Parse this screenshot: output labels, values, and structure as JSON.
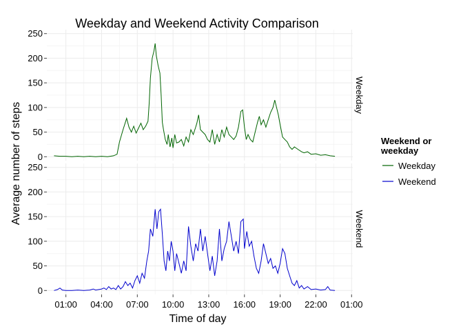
{
  "chart_data": {
    "type": "line",
    "title": "Weekday and Weekend Activity Comparison",
    "xlabel": "Time of day",
    "ylabel": "Average number of steps",
    "x_unit": "hours",
    "xlim": [
      -0.6,
      25.1
    ],
    "ylim": [
      -8,
      258
    ],
    "x_ticks": [
      {
        "value": 1,
        "label": "01:00"
      },
      {
        "value": 4,
        "label": "04:00"
      },
      {
        "value": 7,
        "label": "07:00"
      },
      {
        "value": 10,
        "label": "10:00"
      },
      {
        "value": 13,
        "label": "13:00"
      },
      {
        "value": 16,
        "label": "16:00"
      },
      {
        "value": 19,
        "label": "19:00"
      },
      {
        "value": 22,
        "label": "22:00"
      },
      {
        "value": 25,
        "label": "01:00"
      }
    ],
    "y_ticks": [
      0,
      50,
      100,
      150,
      200,
      250
    ],
    "legend": {
      "title_line1": "Weekend or",
      "title_line2": "weekday",
      "placement": "right"
    },
    "grid": true,
    "series": [
      {
        "name": "Weekday",
        "panel_label": "Weekday",
        "color": "#006400",
        "points": [
          [
            0,
            2
          ],
          [
            0.5,
            1
          ],
          [
            1,
            1
          ],
          [
            1.5,
            0
          ],
          [
            2,
            1
          ],
          [
            2.5,
            0
          ],
          [
            3,
            1
          ],
          [
            3.5,
            0
          ],
          [
            4,
            1
          ],
          [
            4.5,
            0
          ],
          [
            5,
            2
          ],
          [
            5.3,
            5
          ],
          [
            5.5,
            30
          ],
          [
            5.8,
            55
          ],
          [
            6.0,
            70
          ],
          [
            6.1,
            78
          ],
          [
            6.3,
            60
          ],
          [
            6.5,
            50
          ],
          [
            6.7,
            62
          ],
          [
            6.9,
            48
          ],
          [
            7.1,
            58
          ],
          [
            7.3,
            68
          ],
          [
            7.5,
            55
          ],
          [
            7.7,
            62
          ],
          [
            7.9,
            72
          ],
          [
            8.0,
            110
          ],
          [
            8.1,
            160
          ],
          [
            8.25,
            200
          ],
          [
            8.4,
            215
          ],
          [
            8.5,
            230
          ],
          [
            8.6,
            205
          ],
          [
            8.75,
            185
          ],
          [
            8.9,
            170
          ],
          [
            9.0,
            125
          ],
          [
            9.1,
            70
          ],
          [
            9.2,
            55
          ],
          [
            9.35,
            35
          ],
          [
            9.5,
            25
          ],
          [
            9.6,
            45
          ],
          [
            9.75,
            20
          ],
          [
            9.9,
            38
          ],
          [
            10.0,
            18
          ],
          [
            10.15,
            45
          ],
          [
            10.3,
            28
          ],
          [
            10.5,
            30
          ],
          [
            10.7,
            35
          ],
          [
            10.9,
            22
          ],
          [
            11.1,
            40
          ],
          [
            11.3,
            30
          ],
          [
            11.5,
            55
          ],
          [
            11.7,
            45
          ],
          [
            11.9,
            60
          ],
          [
            12.0,
            68
          ],
          [
            12.15,
            85
          ],
          [
            12.3,
            55
          ],
          [
            12.5,
            50
          ],
          [
            12.7,
            45
          ],
          [
            12.9,
            35
          ],
          [
            13.1,
            30
          ],
          [
            13.3,
            55
          ],
          [
            13.5,
            25
          ],
          [
            13.7,
            45
          ],
          [
            13.9,
            30
          ],
          [
            14.1,
            55
          ],
          [
            14.3,
            40
          ],
          [
            14.5,
            60
          ],
          [
            14.7,
            45
          ],
          [
            14.9,
            40
          ],
          [
            15.1,
            35
          ],
          [
            15.3,
            42
          ],
          [
            15.5,
            60
          ],
          [
            15.7,
            92
          ],
          [
            15.85,
            95
          ],
          [
            16.0,
            60
          ],
          [
            16.15,
            35
          ],
          [
            16.3,
            45
          ],
          [
            16.5,
            35
          ],
          [
            16.7,
            30
          ],
          [
            16.9,
            50
          ],
          [
            17.1,
            70
          ],
          [
            17.25,
            82
          ],
          [
            17.4,
            65
          ],
          [
            17.6,
            75
          ],
          [
            17.8,
            60
          ],
          [
            18.0,
            75
          ],
          [
            18.2,
            90
          ],
          [
            18.4,
            100
          ],
          [
            18.55,
            115
          ],
          [
            18.7,
            100
          ],
          [
            18.85,
            85
          ],
          [
            19.0,
            65
          ],
          [
            19.2,
            40
          ],
          [
            19.4,
            35
          ],
          [
            19.6,
            30
          ],
          [
            19.8,
            20
          ],
          [
            20.0,
            15
          ],
          [
            20.2,
            20
          ],
          [
            20.5,
            15
          ],
          [
            20.8,
            10
          ],
          [
            21.0,
            8
          ],
          [
            21.3,
            10
          ],
          [
            21.6,
            5
          ],
          [
            22.0,
            6
          ],
          [
            22.4,
            3
          ],
          [
            22.8,
            4
          ],
          [
            23.2,
            2
          ],
          [
            23.6,
            1
          ]
        ]
      },
      {
        "name": "Weekend",
        "panel_label": "Weekend",
        "color": "#0000cd",
        "points": [
          [
            0,
            0
          ],
          [
            0.3,
            2
          ],
          [
            0.5,
            5
          ],
          [
            0.7,
            1
          ],
          [
            1,
            0
          ],
          [
            1.5,
            0
          ],
          [
            2,
            1
          ],
          [
            2.5,
            0
          ],
          [
            3,
            1
          ],
          [
            3.3,
            3
          ],
          [
            3.5,
            1
          ],
          [
            4,
            3
          ],
          [
            4.2,
            5
          ],
          [
            4.4,
            2
          ],
          [
            4.6,
            8
          ],
          [
            4.8,
            3
          ],
          [
            5.0,
            5
          ],
          [
            5.2,
            2
          ],
          [
            5.4,
            10
          ],
          [
            5.6,
            3
          ],
          [
            5.8,
            8
          ],
          [
            6.0,
            18
          ],
          [
            6.2,
            10
          ],
          [
            6.4,
            15
          ],
          [
            6.6,
            5
          ],
          [
            6.8,
            20
          ],
          [
            7.0,
            30
          ],
          [
            7.2,
            15
          ],
          [
            7.4,
            35
          ],
          [
            7.6,
            25
          ],
          [
            7.8,
            60
          ],
          [
            7.95,
            80
          ],
          [
            8.1,
            125
          ],
          [
            8.3,
            110
          ],
          [
            8.5,
            165
          ],
          [
            8.65,
            125
          ],
          [
            8.8,
            160
          ],
          [
            8.95,
            165
          ],
          [
            9.1,
            115
          ],
          [
            9.25,
            60
          ],
          [
            9.4,
            40
          ],
          [
            9.55,
            80
          ],
          [
            9.7,
            60
          ],
          [
            9.85,
            100
          ],
          [
            10.0,
            80
          ],
          [
            10.15,
            40
          ],
          [
            10.3,
            75
          ],
          [
            10.5,
            55
          ],
          [
            10.7,
            35
          ],
          [
            10.9,
            60
          ],
          [
            11.1,
            40
          ],
          [
            11.3,
            130
          ],
          [
            11.5,
            90
          ],
          [
            11.7,
            60
          ],
          [
            11.9,
            95
          ],
          [
            12.1,
            80
          ],
          [
            12.3,
            125
          ],
          [
            12.5,
            80
          ],
          [
            12.7,
            110
          ],
          [
            12.9,
            75
          ],
          [
            13.1,
            40
          ],
          [
            13.3,
            70
          ],
          [
            13.5,
            30
          ],
          [
            13.7,
            60
          ],
          [
            13.9,
            125
          ],
          [
            14.1,
            60
          ],
          [
            14.3,
            85
          ],
          [
            14.5,
            100
          ],
          [
            14.7,
            140
          ],
          [
            14.9,
            110
          ],
          [
            15.1,
            80
          ],
          [
            15.3,
            100
          ],
          [
            15.5,
            75
          ],
          [
            15.7,
            140
          ],
          [
            15.9,
            145
          ],
          [
            16.0,
            85
          ],
          [
            16.2,
            120
          ],
          [
            16.4,
            90
          ],
          [
            16.6,
            100
          ],
          [
            16.8,
            70
          ],
          [
            17.0,
            45
          ],
          [
            17.2,
            35
          ],
          [
            17.4,
            60
          ],
          [
            17.6,
            95
          ],
          [
            17.8,
            75
          ],
          [
            18.0,
            55
          ],
          [
            18.2,
            65
          ],
          [
            18.4,
            45
          ],
          [
            18.6,
            50
          ],
          [
            18.8,
            35
          ],
          [
            19.0,
            55
          ],
          [
            19.2,
            85
          ],
          [
            19.4,
            75
          ],
          [
            19.6,
            45
          ],
          [
            19.8,
            30
          ],
          [
            20.0,
            15
          ],
          [
            20.2,
            10
          ],
          [
            20.4,
            20
          ],
          [
            20.6,
            5
          ],
          [
            20.8,
            10
          ],
          [
            21.0,
            3
          ],
          [
            21.3,
            8
          ],
          [
            21.6,
            2
          ],
          [
            22.0,
            3
          ],
          [
            22.4,
            1
          ],
          [
            22.8,
            2
          ],
          [
            23.0,
            8
          ],
          [
            23.2,
            1
          ],
          [
            23.6,
            0
          ]
        ]
      }
    ]
  }
}
